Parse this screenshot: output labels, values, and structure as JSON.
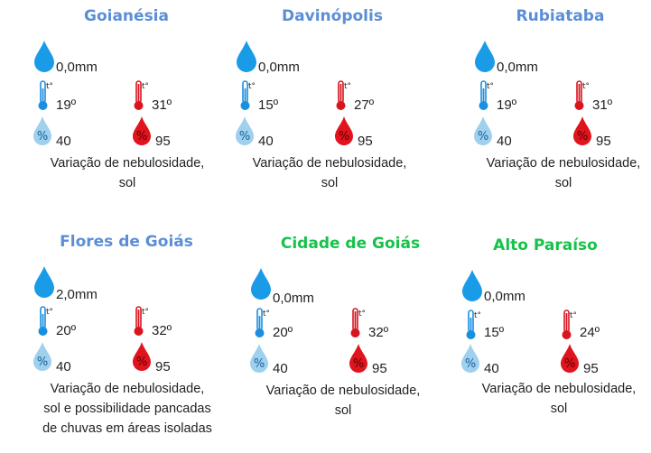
{
  "colors": {
    "blue_title": "#5b8ed6",
    "green_title": "#16c24a",
    "rain_drop": "#1a9be8",
    "humidity_low": "#9fd0ee",
    "humidity_high": "#e0141e",
    "therm_cold": "#1a8ee0",
    "therm_hot": "#d8141e"
  },
  "icons": {
    "rain": "rain-drop-icon",
    "temp_min": "thermometer-cold-icon",
    "temp_max": "thermometer-hot-icon",
    "humidity_min": "humidity-low-drop-icon",
    "humidity_max": "humidity-high-drop-icon",
    "thermometer_mark": "t°"
  },
  "cities": [
    {
      "name": "Goianésia",
      "name_color": "blue",
      "rain": "0,0mm",
      "temp_min": "19º",
      "temp_max": "31º",
      "humidity_min": "40",
      "humidity_max": "95",
      "description": [
        "Variação de nebulosidade,",
        "sol"
      ]
    },
    {
      "name": "Davinópolis",
      "name_color": "blue",
      "rain": "0,0mm",
      "temp_min": "15º",
      "temp_max": "27º",
      "humidity_min": "40",
      "humidity_max": "95",
      "description": [
        "Variação de nebulosidade,",
        "sol"
      ]
    },
    {
      "name": "Rubiataba",
      "name_color": "blue",
      "rain": "0,0mm",
      "temp_min": "19º",
      "temp_max": "31º",
      "humidity_min": "40",
      "humidity_max": "95",
      "description": [
        "Variação de nebulosidade,",
        "sol"
      ]
    },
    {
      "name": "Flores de Goiás",
      "name_color": "blue",
      "rain": "2,0mm",
      "temp_min": "20º",
      "temp_max": "32º",
      "humidity_min": "40",
      "humidity_max": "95",
      "description": [
        "Variação de nebulosidade,",
        "sol e possibilidade pancadas",
        "de chuvas em áreas isoladas"
      ]
    },
    {
      "name": "Cidade de Goiás",
      "name_color": "green",
      "rain": "0,0mm",
      "temp_min": "20º",
      "temp_max": "32º",
      "humidity_min": "40",
      "humidity_max": "95",
      "description": [
        "Variação de nebulosidade,",
        "sol"
      ]
    },
    {
      "name": "Alto Paraíso",
      "name_color": "green",
      "rain": "0,0mm",
      "temp_min": "15º",
      "temp_max": "24º",
      "humidity_min": "40",
      "humidity_max": "95",
      "description": [
        "Variação de nebulosidade,",
        "sol"
      ]
    }
  ]
}
